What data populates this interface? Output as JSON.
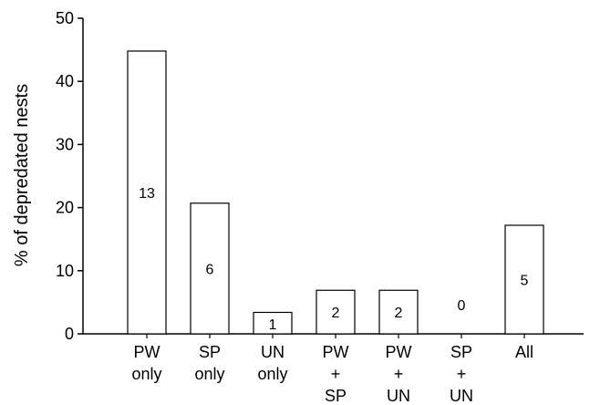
{
  "chart_data": {
    "type": "bar",
    "title": "",
    "xlabel": "",
    "ylabel": "% of depredated nests",
    "ylim": [
      0,
      50
    ],
    "yticks": [
      0,
      10,
      20,
      30,
      40,
      50
    ],
    "categories": [
      [
        "PW",
        "only"
      ],
      [
        "SP",
        "only"
      ],
      [
        "UN",
        "only"
      ],
      [
        "PW",
        "+",
        "SP"
      ],
      [
        "PW",
        "+",
        "UN"
      ],
      [
        "SP",
        "+",
        "UN"
      ],
      [
        "All"
      ]
    ],
    "values": [
      44.8,
      20.7,
      3.4,
      6.9,
      6.9,
      0,
      17.2
    ],
    "counts": [
      "13",
      "6",
      "1",
      "2",
      "2",
      "0",
      "5"
    ],
    "grid": false,
    "bar_color": "#ffffff",
    "edge_color": "#000000"
  }
}
